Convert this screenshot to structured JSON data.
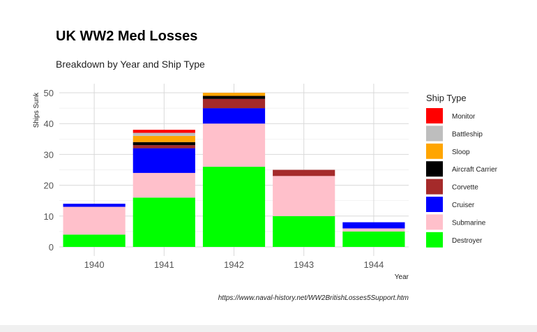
{
  "chart_data": {
    "type": "bar",
    "stacked": true,
    "title": "UK WW2 Med Losses",
    "subtitle": "Breakdown by Year and Ship Type",
    "xlabel": "Year",
    "ylabel": "Ships Sunk",
    "caption": "https://www.naval-history.net/WW2BritishLosses5Support.htm",
    "ylim": [
      0,
      52
    ],
    "yticks": [
      0,
      10,
      20,
      30,
      40,
      50
    ],
    "grid": true,
    "legend_title": "Ship Type",
    "legend_position": "right",
    "categories": [
      "1940",
      "1941",
      "1942",
      "1943",
      "1944"
    ],
    "series": [
      {
        "name": "Destroyer",
        "color": "#00ff00",
        "values": [
          4,
          16,
          26,
          10,
          5
        ]
      },
      {
        "name": "Submarine",
        "color": "#ffc0cb",
        "values": [
          9,
          8,
          14,
          13,
          1
        ]
      },
      {
        "name": "Cruiser",
        "color": "#0000ff",
        "values": [
          1,
          8,
          5,
          0,
          2
        ]
      },
      {
        "name": "Corvette",
        "color": "#a52a2a",
        "values": [
          0,
          1,
          3,
          2,
          0
        ]
      },
      {
        "name": "Aircraft Carrier",
        "color": "#000000",
        "values": [
          0,
          1,
          1,
          0,
          0
        ]
      },
      {
        "name": "Sloop",
        "color": "#ffa500",
        "values": [
          0,
          2,
          1,
          0,
          0
        ]
      },
      {
        "name": "Battleship",
        "color": "#bebebe",
        "values": [
          0,
          1,
          0,
          0,
          0
        ]
      },
      {
        "name": "Monitor",
        "color": "#ff0000",
        "values": [
          0,
          1,
          0,
          0,
          0
        ]
      }
    ]
  }
}
